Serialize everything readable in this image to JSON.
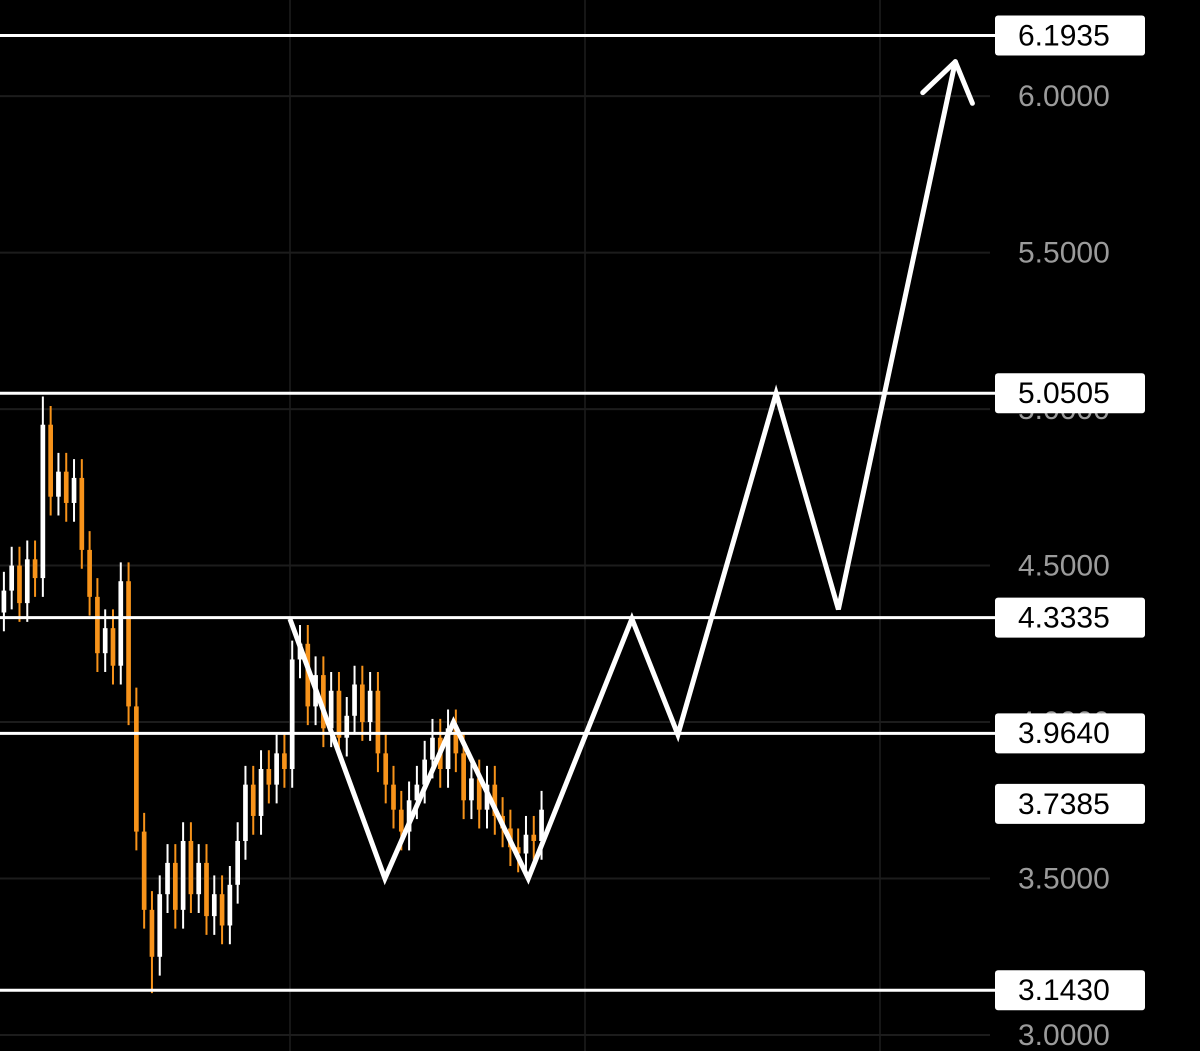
{
  "chart_data": {
    "type": "candlestick",
    "ylim": [
      2.949,
      6.307
    ],
    "xlim": [
      0,
      154
    ],
    "grid": true,
    "yticks": [
      {
        "value": 3,
        "label": "3.0000"
      },
      {
        "value": 3.5,
        "label": "3.5000"
      },
      {
        "value": 4,
        "label": "4.0000"
      },
      {
        "value": 4.5,
        "label": "4.5000"
      },
      {
        "value": 5,
        "label": "5.0000"
      },
      {
        "value": 5.5,
        "label": "5.5000"
      },
      {
        "value": 6,
        "label": "6.0000"
      }
    ],
    "up_color": "#ffffff",
    "down_color": "#f7931a",
    "open": [
      4.35,
      4.42,
      4.5,
      4.38,
      4.52,
      4.46,
      4.95,
      4.72,
      4.8,
      4.7,
      4.78,
      4.55,
      4.4,
      4.22,
      4.3,
      4.18,
      4.45,
      4.05,
      3.65,
      3.4,
      3.25,
      3.45,
      3.55,
      3.4,
      3.62,
      3.45,
      3.55,
      3.38,
      3.45,
      3.35,
      3.48,
      3.62,
      3.8,
      3.7,
      3.85,
      3.8,
      3.9,
      3.85,
      4.2,
      4.25,
      4.05,
      4.15,
      3.98,
      4.1,
      3.95,
      4.02,
      4.12,
      4.0,
      4.1,
      3.9,
      3.8,
      3.72,
      3.65,
      3.75,
      3.8,
      3.88,
      3.95,
      3.85,
      3.98,
      3.9,
      3.75,
      3.82,
      3.72,
      3.8,
      3.7,
      3.66,
      3.6,
      3.58,
      3.64,
      3.62
    ],
    "high": [
      4.48,
      4.56,
      4.56,
      4.58,
      4.58,
      5.04,
      5.01,
      4.86,
      4.86,
      4.84,
      4.84,
      4.61,
      4.46,
      4.36,
      4.36,
      4.51,
      4.51,
      4.11,
      3.71,
      3.46,
      3.51,
      3.61,
      3.61,
      3.68,
      3.68,
      3.61,
      3.61,
      3.51,
      3.51,
      3.54,
      3.68,
      3.86,
      3.86,
      3.91,
      3.91,
      3.96,
      3.96,
      4.26,
      4.31,
      4.31,
      4.21,
      4.21,
      4.16,
      4.16,
      4.08,
      4.18,
      4.18,
      4.16,
      4.16,
      3.96,
      3.86,
      3.78,
      3.81,
      3.86,
      3.94,
      4.01,
      4.01,
      4.04,
      4.04,
      3.96,
      3.88,
      3.88,
      3.86,
      3.86,
      3.76,
      3.72,
      3.66,
      3.7,
      3.7,
      3.78
    ],
    "low": [
      4.29,
      4.36,
      4.32,
      4.32,
      4.4,
      4.4,
      4.66,
      4.66,
      4.64,
      4.64,
      4.49,
      4.34,
      4.16,
      4.16,
      4.12,
      4.12,
      3.99,
      3.59,
      3.34,
      3.134,
      3.19,
      3.39,
      3.34,
      3.34,
      3.39,
      3.39,
      3.32,
      3.32,
      3.29,
      3.29,
      3.42,
      3.56,
      3.64,
      3.64,
      3.74,
      3.74,
      3.79,
      3.79,
      4.14,
      3.99,
      3.99,
      3.92,
      3.92,
      3.89,
      3.89,
      3.96,
      3.94,
      3.94,
      3.84,
      3.74,
      3.66,
      3.59,
      3.59,
      3.69,
      3.74,
      3.82,
      3.79,
      3.79,
      3.84,
      3.69,
      3.69,
      3.66,
      3.66,
      3.64,
      3.6,
      3.54,
      3.52,
      3.52,
      3.56,
      3.56
    ],
    "close": [
      4.42,
      4.5,
      4.38,
      4.52,
      4.46,
      4.95,
      4.72,
      4.8,
      4.7,
      4.78,
      4.55,
      4.4,
      4.22,
      4.3,
      4.18,
      4.45,
      4.05,
      3.65,
      3.4,
      3.25,
      3.45,
      3.55,
      3.4,
      3.62,
      3.45,
      3.55,
      3.38,
      3.45,
      3.35,
      3.48,
      3.62,
      3.8,
      3.7,
      3.85,
      3.8,
      3.9,
      3.85,
      4.2,
      4.25,
      4.05,
      4.15,
      3.98,
      4.1,
      3.95,
      4.02,
      4.12,
      4.0,
      4.1,
      3.9,
      3.8,
      3.72,
      3.65,
      3.75,
      3.8,
      3.88,
      3.95,
      3.85,
      3.98,
      3.9,
      3.75,
      3.82,
      3.72,
      3.8,
      3.7,
      3.66,
      3.6,
      3.58,
      3.64,
      3.62,
      3.72
    ],
    "levels": [
      {
        "value": 6.1935,
        "label": "6.1935"
      },
      {
        "value": 5.0505,
        "label": "5.0505"
      },
      {
        "value": 4.3335,
        "label": "4.3335"
      },
      {
        "value": 3.964,
        "label": "3.9640"
      },
      {
        "value": 3.143,
        "label": "3.1430"
      }
    ],
    "last_price": {
      "value": 3.7385,
      "label": "3.7385"
    },
    "projection": {
      "color": "#ffffff",
      "x": [
        37.2,
        49.4,
        58.2,
        67.8,
        81.1,
        87,
        99.6,
        107.6,
        122.6
      ],
      "y": [
        4.33,
        3.5,
        4.0,
        3.5,
        4.33,
        3.96,
        5.05,
        4.36,
        6.11
      ]
    }
  }
}
